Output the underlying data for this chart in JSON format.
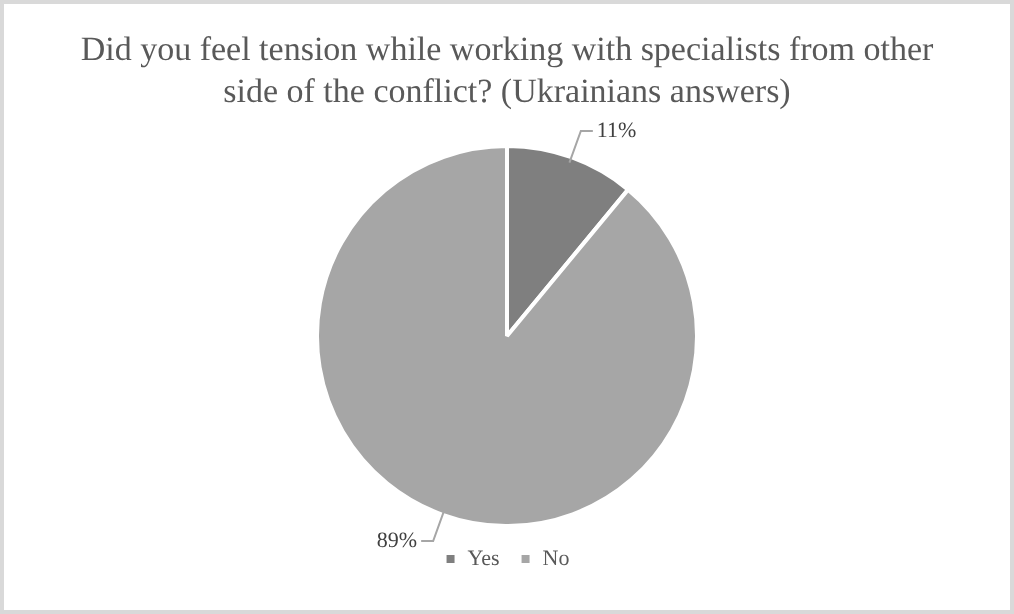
{
  "chart_data": {
    "type": "pie",
    "title": "Did you feel tension while working with specialists from other side of the conflict? (Ukrainians answers)",
    "categories": [
      "Yes",
      "No"
    ],
    "values": [
      11,
      89
    ],
    "colors": [
      "#7f7f7f",
      "#a6a6a6"
    ],
    "value_labels": [
      "11%",
      "89%"
    ],
    "legend": "bottom"
  }
}
